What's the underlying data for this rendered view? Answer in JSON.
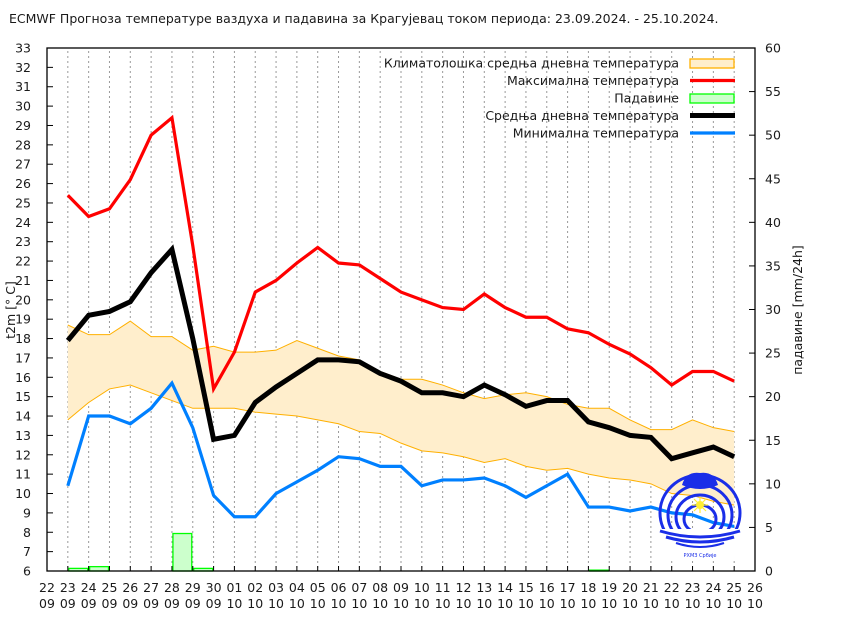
{
  "title": "ECMWF Прогноза температуре ваздуха и падавина за Крагујевац током периода: 23.09.2024. - 25.10.2024.",
  "chart_data": {
    "type": "line",
    "title": "ECMWF Прогноза температуре ваздуха и падавина за Крагујевац током периода: 23.09.2024. - 25.10.2024.",
    "xlabel": "",
    "ylabel": "t2m [° C]",
    "ylabel_right": "падавине [mm/24h]",
    "ylim": [
      6,
      33
    ],
    "ylim_right": [
      0,
      60
    ],
    "y_ticks": [
      6,
      7,
      8,
      9,
      10,
      11,
      12,
      13,
      14,
      15,
      16,
      17,
      18,
      19,
      20,
      21,
      22,
      23,
      24,
      25,
      26,
      27,
      28,
      29,
      30,
      31,
      32,
      33
    ],
    "y_ticks_right": [
      0,
      5,
      10,
      15,
      20,
      25,
      30,
      35,
      40,
      45,
      50,
      55,
      60
    ],
    "grid": "vertical dotted lines at each day",
    "legend_position": "top-right",
    "x_tick_labels": [
      [
        "22",
        "09"
      ],
      [
        "23",
        "09"
      ],
      [
        "24",
        "09"
      ],
      [
        "25",
        "09"
      ],
      [
        "26",
        "09"
      ],
      [
        "27",
        "09"
      ],
      [
        "28",
        "09"
      ],
      [
        "29",
        "09"
      ],
      [
        "30",
        "09"
      ],
      [
        "01",
        "10"
      ],
      [
        "02",
        "10"
      ],
      [
        "03",
        "10"
      ],
      [
        "04",
        "10"
      ],
      [
        "05",
        "10"
      ],
      [
        "06",
        "10"
      ],
      [
        "07",
        "10"
      ],
      [
        "08",
        "10"
      ],
      [
        "09",
        "10"
      ],
      [
        "10",
        "10"
      ],
      [
        "11",
        "10"
      ],
      [
        "12",
        "10"
      ],
      [
        "13",
        "10"
      ],
      [
        "14",
        "10"
      ],
      [
        "15",
        "10"
      ],
      [
        "16",
        "10"
      ],
      [
        "17",
        "10"
      ],
      [
        "18",
        "10"
      ],
      [
        "19",
        "10"
      ],
      [
        "20",
        "10"
      ],
      [
        "21",
        "10"
      ],
      [
        "22",
        "10"
      ],
      [
        "23",
        "10"
      ],
      [
        "24",
        "10"
      ],
      [
        "25",
        "10"
      ],
      [
        "26",
        "10"
      ]
    ],
    "x": [
      "23.09",
      "24.09",
      "25.09",
      "26.09",
      "27.09",
      "28.09",
      "29.09",
      "30.09",
      "01.10",
      "02.10",
      "03.10",
      "04.10",
      "05.10",
      "06.10",
      "07.10",
      "08.10",
      "09.10",
      "10.10",
      "11.10",
      "12.10",
      "13.10",
      "14.10",
      "15.10",
      "16.10",
      "17.10",
      "18.10",
      "19.10",
      "20.10",
      "21.10",
      "22.10",
      "23.10",
      "24.10",
      "25.10"
    ],
    "series": [
      {
        "name": "Максимална температура",
        "color": "#ff0000",
        "axis": "left",
        "values": [
          25.4,
          24.3,
          24.7,
          26.2,
          28.5,
          29.4,
          22.8,
          15.4,
          17.3,
          20.4,
          21.0,
          21.9,
          22.7,
          21.9,
          21.8,
          21.1,
          20.4,
          20.0,
          19.6,
          19.5,
          20.3,
          19.6,
          19.1,
          19.1,
          18.5,
          18.3,
          17.7,
          17.2,
          16.5,
          15.6,
          16.3,
          16.3,
          15.8
        ]
      },
      {
        "name": "Средња дневна температура",
        "color": "#000000",
        "axis": "left",
        "values": [
          17.9,
          19.2,
          19.4,
          19.9,
          21.4,
          22.6,
          18.0,
          12.8,
          13.0,
          14.7,
          15.5,
          16.2,
          16.9,
          16.9,
          16.8,
          16.2,
          15.8,
          15.2,
          15.2,
          15.0,
          15.6,
          15.1,
          14.5,
          14.8,
          14.8,
          13.7,
          13.4,
          13.0,
          12.9,
          11.8,
          12.1,
          12.4,
          11.9
        ]
      },
      {
        "name": "Минимална температура",
        "color": "#0080ff",
        "axis": "left",
        "values": [
          10.4,
          14.0,
          14.0,
          13.6,
          14.4,
          15.7,
          13.4,
          9.9,
          8.8,
          8.8,
          10.0,
          10.6,
          11.2,
          11.9,
          11.8,
          11.4,
          11.4,
          10.4,
          10.7,
          10.7,
          10.8,
          10.4,
          9.8,
          10.4,
          11.0,
          9.3,
          9.3,
          9.1,
          9.3,
          9.0,
          8.9,
          8.5,
          8.3
        ]
      },
      {
        "name": "Климатолошка средња дневна температура",
        "type": "area",
        "color": "#ffb000",
        "fill": "#ffeecc",
        "axis": "left",
        "upper": [
          18.7,
          18.2,
          18.2,
          18.9,
          18.1,
          18.1,
          17.4,
          17.6,
          17.3,
          17.3,
          17.4,
          17.9,
          17.5,
          17.1,
          16.9,
          16.3,
          15.9,
          15.9,
          15.6,
          15.2,
          14.9,
          15.1,
          15.2,
          15.0,
          14.6,
          14.4,
          14.4,
          13.8,
          13.3,
          13.3,
          13.8,
          13.4,
          13.2
        ],
        "lower": [
          13.8,
          14.7,
          15.4,
          15.6,
          15.2,
          14.8,
          14.4,
          14.4,
          14.4,
          14.2,
          14.1,
          14.0,
          13.8,
          13.6,
          13.2,
          13.1,
          12.6,
          12.2,
          12.1,
          11.9,
          11.6,
          11.8,
          11.4,
          11.2,
          11.3,
          11.0,
          10.8,
          10.7,
          10.5,
          10.0,
          9.9,
          9.6,
          9.4
        ]
      },
      {
        "name": "Падавине",
        "type": "bar",
        "color": "#00ff00",
        "fill": "#ccffcc",
        "axis": "right",
        "bars": [
          {
            "from": "23.09",
            "to": "24.09",
            "value": 0.3
          },
          {
            "from": "24.09",
            "to": "25.09",
            "value": 0.5
          },
          {
            "from": "28.09",
            "to": "29.09",
            "value": 4.3
          },
          {
            "from": "29.09",
            "to": "30.09",
            "value": 0.3
          },
          {
            "from": "18.10",
            "to": "19.10",
            "value": 0.1
          }
        ]
      }
    ]
  },
  "legend": [
    {
      "label": "Климатолошка средња дневна температура",
      "kind": "box",
      "stroke": "#ffb000",
      "fill": "#ffeecc"
    },
    {
      "label": "Максимална температура",
      "kind": "line",
      "color": "#ff0000"
    },
    {
      "label": "Падавине",
      "kind": "box",
      "stroke": "#00ff00",
      "fill": "#ccffcc"
    },
    {
      "label": "Средња дневна температура",
      "kind": "line",
      "color": "#000000"
    },
    {
      "label": "Минимална температура",
      "kind": "line",
      "color": "#0080ff"
    }
  ],
  "logo": {
    "label": "РХМЗ Србије"
  }
}
